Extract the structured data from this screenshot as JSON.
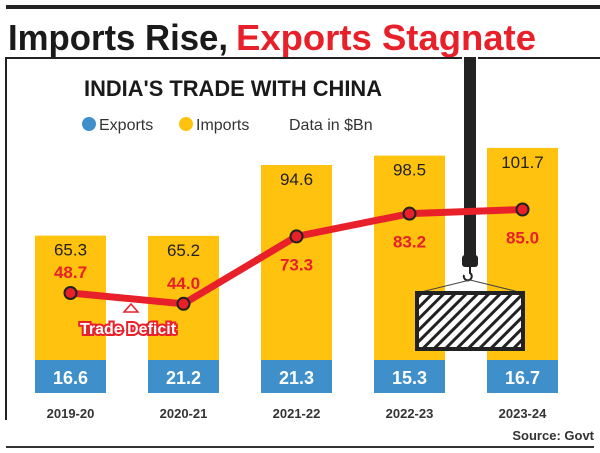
{
  "headline": {
    "part1": "Imports Rise,",
    "part2": "Exports Stagnate"
  },
  "chart_data": {
    "type": "bar",
    "title": "INDIA'S TRADE WITH CHINA",
    "note": "Data in $Bn",
    "source": "Source: Govt",
    "categories": [
      "2019-20",
      "2020-21",
      "2021-22",
      "2022-23",
      "2023-24"
    ],
    "series": [
      {
        "name": "Exports",
        "values": [
          16.6,
          21.2,
          21.3,
          15.3,
          16.7
        ],
        "color": "#3f8fcb"
      },
      {
        "name": "Imports",
        "values": [
          65.3,
          65.2,
          94.6,
          98.5,
          101.7
        ],
        "color": "#ffc20e"
      }
    ],
    "line": {
      "name": "Trade Deficit",
      "values": [
        48.7,
        44.0,
        73.3,
        83.2,
        85.0
      ],
      "color": "#e8202a"
    },
    "values_labels": {
      "exports": [
        "16.6",
        "21.2",
        "21.3",
        "15.3",
        "16.7"
      ],
      "imports": [
        "65.3",
        "65.2",
        "94.6",
        "98.5",
        "101.7"
      ],
      "deficit": [
        "48.7",
        "44.0",
        "73.3",
        "83.2",
        "85.0"
      ]
    }
  }
}
